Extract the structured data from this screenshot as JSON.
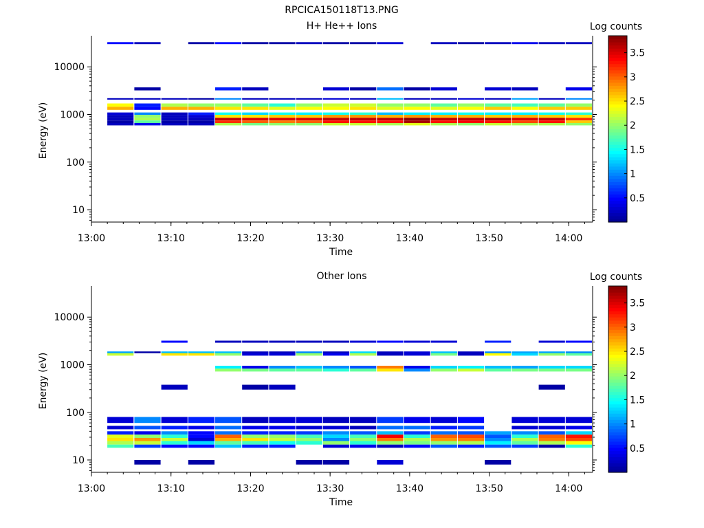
{
  "figure_title": "RPCICA150118T13.PNG",
  "colormap": [
    "#00008f",
    "#0000ff",
    "#007fff",
    "#00ffff",
    "#7fff7f",
    "#ffff00",
    "#ff7f00",
    "#ff0000",
    "#800000"
  ],
  "chart_data": [
    {
      "type": "heatmap",
      "title": "H+ He++ Ions",
      "xlabel": "Time",
      "ylabel": "Energy (eV)",
      "colorbar_label": "Log counts",
      "colorbar_range": [
        0,
        3.85
      ],
      "colorbar_ticks": [
        "0.5",
        "1",
        "1.5",
        "2",
        "2.5",
        "3",
        "3.5"
      ],
      "colorbar_tick_values": [
        0.5,
        1,
        1.5,
        2,
        2.5,
        3,
        3.5
      ],
      "x_ticks": [
        "13:00",
        "13:10",
        "13:20",
        "13:30",
        "13:40",
        "13:50",
        "14:00"
      ],
      "x_tick_minutes": [
        0,
        10,
        20,
        30,
        40,
        50,
        60
      ],
      "xlim_minutes": [
        0,
        63
      ],
      "y_ticks": [
        "10",
        "100",
        "1000",
        "10000"
      ],
      "y_tick_values": [
        10,
        100,
        1000,
        10000
      ],
      "ylim": [
        5.5,
        45000
      ],
      "y_scale": "log",
      "bands": [
        {
          "elo": 1450,
          "ehi": 1700,
          "values": [
            2.4,
            0.6,
            2.1,
            2.0,
            2.0,
            1.8,
            1.6,
            2.0,
            2.2,
            2.2,
            2.0,
            2.0,
            1.8,
            2.0,
            1.8,
            1.7,
            1.8,
            2.0
          ]
        },
        {
          "elo": 1250,
          "ehi": 1450,
          "values": [
            2.7,
            0.5,
            2.7,
            2.7,
            2.5,
            2.5,
            2.3,
            2.4,
            2.4,
            2.5,
            2.3,
            2.4,
            2.3,
            2.4,
            2.6,
            2.4,
            2.6,
            2.6
          ]
        },
        {
          "elo": 980,
          "ehi": 1100,
          "values": [
            0.3,
            1.0,
            0.2,
            0.6,
            1.5,
            1.3,
            1.5,
            1.4,
            1.5,
            1.6,
            1.2,
            1.4,
            1.4,
            1.5,
            1.4,
            1.4,
            1.5,
            1.6
          ]
        },
        {
          "elo": 850,
          "ehi": 980,
          "values": [
            0.2,
            2.0,
            0.2,
            0.3,
            2.5,
            2.5,
            2.6,
            2.6,
            2.8,
            2.8,
            2.7,
            2.8,
            2.7,
            2.7,
            2.6,
            2.7,
            2.6,
            2.5
          ]
        },
        {
          "elo": 750,
          "ehi": 850,
          "values": [
            0.2,
            2.1,
            0.2,
            0.2,
            3.6,
            3.5,
            3.5,
            3.5,
            3.6,
            3.6,
            3.6,
            3.8,
            3.6,
            3.6,
            3.7,
            3.5,
            3.6,
            3.2
          ]
        },
        {
          "elo": 660,
          "ehi": 750,
          "values": [
            0.1,
            1.8,
            0.1,
            0.1,
            3.2,
            3.0,
            2.9,
            3.0,
            3.3,
            3.3,
            3.3,
            3.7,
            3.3,
            3.4,
            3.3,
            3.1,
            3.3,
            2.6
          ]
        },
        {
          "elo": 590,
          "ehi": 660,
          "values": [
            0.2,
            0.4,
            0.2,
            0.2,
            2.1,
            1.9,
            2.0,
            2.0,
            2.2,
            2.2,
            2.1,
            2.3,
            2.1,
            2.0,
            2.2,
            2.1,
            2.1,
            2.0
          ]
        },
        {
          "elo": 2050,
          "ehi": 2200,
          "values": [
            0.2,
            0.2,
            0.2,
            0.1,
            1.0,
            0.2,
            0.2,
            0.2,
            0.3,
            0.2,
            1.2,
            0.2,
            0.2,
            0.3,
            0.2,
            1.1,
            0.2,
            1.0
          ]
        },
        {
          "elo": 3200,
          "ehi": 3700,
          "values": [
            null,
            0.1,
            null,
            null,
            0.6,
            0.2,
            null,
            null,
            0.3,
            0.1,
            0.9,
            0.1,
            0.3,
            null,
            0.3,
            0.2,
            null,
            0.4
          ]
        },
        {
          "elo": 30000,
          "ehi": 33000,
          "values": [
            0.5,
            0.2,
            null,
            0.1,
            0.5,
            0.1,
            0.1,
            0.2,
            0.1,
            0.1,
            0.3,
            null,
            0.2,
            0.1,
            0.2,
            0.4,
            0.2,
            0.2
          ]
        }
      ],
      "min_energy_eV": 10,
      "max_energy_eV": 40000,
      "columns": 18
    },
    {
      "type": "heatmap",
      "title": "Other Ions",
      "xlabel": "Time",
      "ylabel": "Energy (eV)",
      "colorbar_label": "Log counts",
      "colorbar_range": [
        0,
        3.85
      ],
      "colorbar_ticks": [
        "0.5",
        "1",
        "1.5",
        "2",
        "2.5",
        "3",
        "3.5"
      ],
      "colorbar_tick_values": [
        0.5,
        1,
        1.5,
        2,
        2.5,
        3,
        3.5
      ],
      "x_ticks": [
        "13:00",
        "13:10",
        "13:20",
        "13:30",
        "13:40",
        "13:50",
        "14:00"
      ],
      "x_tick_minutes": [
        0,
        10,
        20,
        30,
        40,
        50,
        60
      ],
      "xlim_minutes": [
        0,
        63
      ],
      "y_ticks": [
        "10",
        "100",
        "1000",
        "10000"
      ],
      "y_tick_values": [
        10,
        100,
        1000,
        10000
      ],
      "ylim": [
        5.5,
        45000
      ],
      "y_scale": "log",
      "bands": [
        {
          "elo": 1550,
          "ehi": 1800,
          "values": [
            2.2,
            null,
            2.5,
            2.5,
            2.0,
            0.3,
            0.3,
            2.0,
            0.4,
            2.1,
            0.2,
            0.3,
            1.9,
            0.2,
            2.4,
            1.3,
            2.0,
            1.8
          ]
        },
        {
          "elo": 1750,
          "ehi": 1900,
          "values": [
            1.1,
            0.1,
            1.2,
            1.2,
            1.2,
            0.2,
            0.2,
            1.0,
            0.2,
            1.3,
            0.2,
            0.3,
            1.2,
            0.2,
            1.0,
            1.1,
            1.1,
            1.0
          ]
        },
        {
          "elo": 720,
          "ehi": 830,
          "values": [
            null,
            null,
            null,
            null,
            2.0,
            1.9,
            1.8,
            1.8,
            1.6,
            1.8,
            2.5,
            1.0,
            2.0,
            2.2,
            1.8,
            1.9,
            1.9,
            1.9
          ]
        },
        {
          "elo": 830,
          "ehi": 950,
          "values": [
            null,
            null,
            null,
            null,
            1.4,
            0.4,
            1.0,
            1.2,
            1.0,
            0.8,
            2.9,
            0.4,
            1.3,
            1.4,
            1.2,
            1.1,
            1.3,
            1.3
          ]
        },
        {
          "elo": 34,
          "ehi": 40,
          "values": [
            0.6,
            0.4,
            1.0,
            0.5,
            0.9,
            0.6,
            0.6,
            0.7,
            1.0,
            0.8,
            1.2,
            0.7,
            0.9,
            0.8,
            1.1,
            1.0,
            0.8,
            1.3
          ]
        },
        {
          "elo": 29,
          "ehi": 34,
          "values": [
            2.3,
            2.0,
            1.6,
            0.5,
            3.0,
            2.0,
            2.0,
            1.7,
            1.3,
            1.7,
            3.4,
            1.6,
            3.0,
            3.1,
            0.8,
            1.6,
            3.0,
            3.3
          ]
        },
        {
          "elo": 25,
          "ehi": 29,
          "values": [
            2.5,
            2.8,
            2.2,
            0.3,
            2.7,
            2.5,
            2.2,
            2.0,
            1.0,
            2.0,
            2.9,
            2.1,
            2.8,
            2.9,
            1.0,
            2.1,
            2.9,
            3.1
          ]
        },
        {
          "elo": 21,
          "ehi": 25,
          "values": [
            2.1,
            2.2,
            1.6,
            1.3,
            1.8,
            1.7,
            1.5,
            1.6,
            2.0,
            1.6,
            2.0,
            1.9,
            2.0,
            2.1,
            1.4,
            1.8,
            2.1,
            2.4
          ]
        },
        {
          "elo": 18,
          "ehi": 21,
          "values": [
            1.7,
            0.7,
            0.5,
            0.5,
            1.2,
            0.6,
            0.6,
            null,
            0.3,
            0.4,
            0.2,
            0.5,
            0.8,
            0.6,
            0.8,
            0.7,
            0.1,
            1.6
          ]
        },
        {
          "elo": 60,
          "ehi": 80,
          "values": [
            0.3,
            1.0,
            0.3,
            0.6,
            0.8,
            0.2,
            0.3,
            0.3,
            0.2,
            0.2,
            0.7,
            0.4,
            0.3,
            0.5,
            null,
            0.3,
            0.3,
            0.3
          ]
        },
        {
          "elo": 44,
          "ehi": 52,
          "values": [
            0.3,
            0.8,
            0.6,
            0.4,
            0.9,
            0.4,
            0.4,
            0.3,
            0.3,
            0.2,
            0.9,
            0.9,
            0.6,
            0.7,
            null,
            0.3,
            0.3,
            0.4
          ]
        },
        {
          "elo": 2900,
          "ehi": 3200,
          "values": [
            null,
            null,
            0.5,
            null,
            0.2,
            0.2,
            0.2,
            0.2,
            0.2,
            0.3,
            0.5,
            0.3,
            0.3,
            null,
            0.6,
            null,
            0.3,
            0.5
          ]
        },
        {
          "elo": 300,
          "ehi": 380,
          "values": [
            null,
            null,
            0.2,
            null,
            null,
            0.1,
            0.2,
            null,
            null,
            null,
            null,
            null,
            null,
            null,
            null,
            null,
            0.1,
            null
          ]
        },
        {
          "elo": 8,
          "ehi": 10,
          "values": [
            null,
            0.1,
            null,
            0.1,
            null,
            null,
            null,
            0.1,
            0.1,
            null,
            0.3,
            null,
            null,
            null,
            0.1,
            null,
            null,
            null
          ]
        }
      ],
      "min_energy_eV": 6,
      "max_energy_eV": 3500,
      "columns": 18
    }
  ]
}
